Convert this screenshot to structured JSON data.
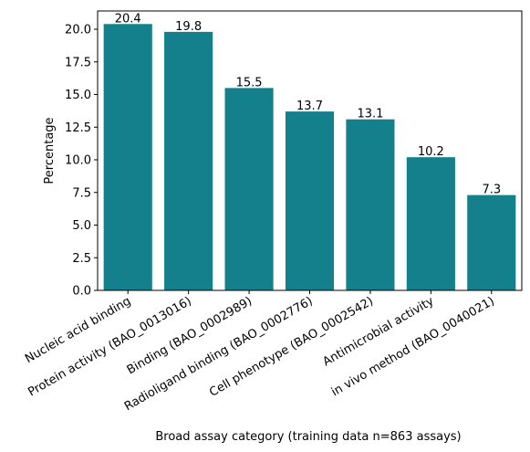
{
  "chart_data": {
    "type": "bar",
    "title": "",
    "xlabel": "Broad assay category (training data n=863 assays)",
    "ylabel": "Percentage",
    "categories": [
      "Nucleic acid binding",
      "Protein activity (BAO_0013016)",
      "Binding (BAO_0002989)",
      "Radioligand binding (BAO_0002776)",
      "Cell phenotype (BAO_0002542)",
      "Antimicrobial activity",
      "in vivo method (BAO_0040021)"
    ],
    "values": [
      20.4,
      19.8,
      15.5,
      13.7,
      13.1,
      10.2,
      7.3
    ],
    "value_labels": [
      "20.4",
      "19.8",
      "15.5",
      "13.7",
      "13.1",
      "10.2",
      "7.3"
    ],
    "ylim": [
      0,
      21.4
    ],
    "yticks": [
      "0.0",
      "2.5",
      "5.0",
      "7.5",
      "10.0",
      "12.5",
      "15.0",
      "17.5",
      "20.0"
    ],
    "bar_color": "#14808c",
    "grid": false,
    "legend": "none"
  }
}
